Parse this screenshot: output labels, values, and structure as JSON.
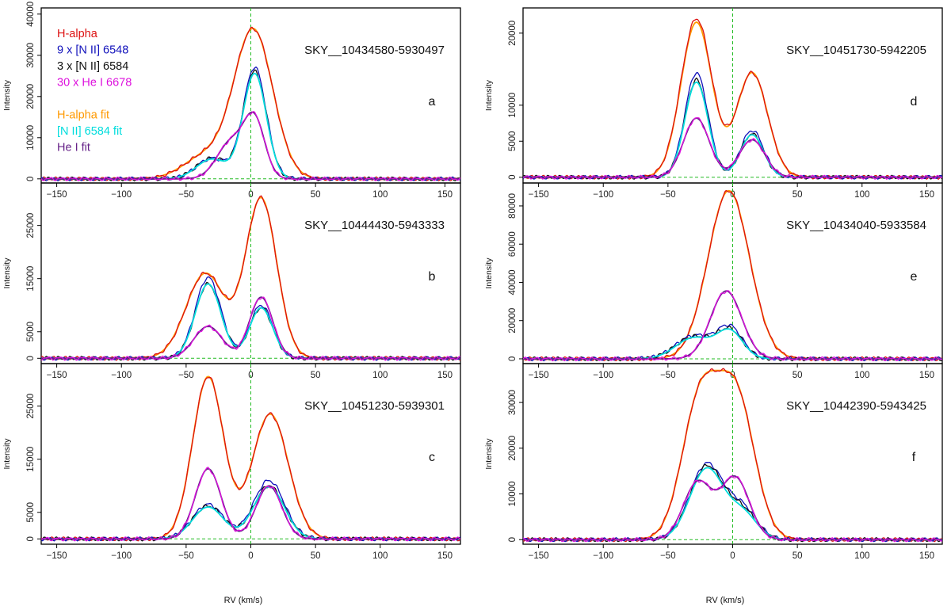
{
  "figure": {
    "xlabel": "RV (km/s)",
    "ylabel": "Intensity"
  },
  "legend": [
    {
      "label": "H-alpha",
      "color": "#dd1111"
    },
    {
      "label": "9 x [N II] 6548",
      "color": "#1111bb"
    },
    {
      "label": "3 x [N II] 6584",
      "color": "#111111"
    },
    {
      "label": "30 x He I 6678",
      "color": "#dd11dd"
    },
    {
      "label": "",
      "color": ""
    },
    {
      "label": "H-alpha fit",
      "color": "#ff9900"
    },
    {
      "label": "[N II] 6584 fit",
      "color": "#00dddd"
    },
    {
      "label": "He I fit",
      "color": "#662288"
    }
  ],
  "chart_data": [
    {
      "type": "line",
      "panel": "a",
      "title": "SKY__10434580-5930497",
      "xlabel": "RV (km/s)",
      "ylabel": "Intensity",
      "xlim": [
        -162,
        162
      ],
      "ylim": [
        -1000,
        41500
      ],
      "xticks": [
        -150,
        -100,
        -50,
        0,
        50,
        100,
        150
      ],
      "yticks": [
        0,
        10000,
        20000,
        30000,
        40000
      ],
      "vline_x": 0,
      "hline_y": 0,
      "series": [
        {
          "name": "H-alpha fit",
          "color": "#ff9900",
          "components": [
            [
              5500,
              -35,
              17
            ],
            [
              36000,
              2,
              15
            ]
          ]
        },
        {
          "name": "H-alpha",
          "color": "#dd1111",
          "components": [
            [
              5500,
              -35,
              17
            ],
            [
              36000,
              2,
              15
            ]
          ]
        },
        {
          "name": "9 x [N II] 6548",
          "color": "#1111bb",
          "components": [
            [
              5000,
              -30,
              12
            ],
            [
              27000,
              3,
              9
            ]
          ]
        },
        {
          "name": "3 x [N II] 6584",
          "color": "#111111",
          "components": [
            [
              5000,
              -30,
              12
            ],
            [
              26000,
              3,
              9
            ]
          ]
        },
        {
          "name": "[N II] 6584 fit",
          "color": "#00dddd",
          "components": [
            [
              4800,
              -30,
              12
            ],
            [
              25500,
              3,
              9
            ]
          ]
        },
        {
          "name": "He I fit",
          "color": "#662288",
          "components": [
            [
              9000,
              -15,
              11
            ],
            [
              13500,
              3,
              8
            ]
          ]
        },
        {
          "name": "30 x He I 6678",
          "color": "#dd11dd",
          "components": [
            [
              9000,
              -15,
              11
            ],
            [
              13500,
              3,
              8
            ]
          ]
        }
      ]
    },
    {
      "type": "line",
      "panel": "b",
      "title": "SKY__10444430-5943333",
      "xlabel": "RV (km/s)",
      "ylabel": "Intensity",
      "xlim": [
        -162,
        162
      ],
      "ylim": [
        -1000,
        33000
      ],
      "xticks": [
        -150,
        -100,
        -50,
        0,
        50,
        100,
        150
      ],
      "yticks": [
        0,
        5000,
        15000,
        25000
      ],
      "vline_x": 0,
      "hline_y": 0,
      "series": [
        {
          "name": "H-alpha fit",
          "color": "#ff9900",
          "components": [
            [
              16000,
              -35,
              15
            ],
            [
              30000,
              8,
              12
            ]
          ]
        },
        {
          "name": "H-alpha",
          "color": "#dd1111",
          "components": [
            [
              16000,
              -35,
              15
            ],
            [
              30000,
              8,
              12
            ]
          ]
        },
        {
          "name": "9 x [N II] 6548",
          "color": "#1111bb",
          "components": [
            [
              15200,
              -33,
              10
            ],
            [
              10000,
              8,
              9
            ]
          ]
        },
        {
          "name": "3 x [N II] 6584",
          "color": "#111111",
          "components": [
            [
              14000,
              -33,
              10
            ],
            [
              9500,
              8,
              9
            ]
          ]
        },
        {
          "name": "[N II] 6584 fit",
          "color": "#00dddd",
          "components": [
            [
              14000,
              -33,
              10
            ],
            [
              9500,
              8,
              9
            ]
          ]
        },
        {
          "name": "He I fit",
          "color": "#662288",
          "components": [
            [
              6000,
              -33,
              11
            ],
            [
              11500,
              8,
              9
            ]
          ]
        },
        {
          "name": "30 x He I 6678",
          "color": "#dd11dd",
          "components": [
            [
              6000,
              -33,
              11
            ],
            [
              11500,
              8,
              9
            ]
          ]
        }
      ]
    },
    {
      "type": "line",
      "panel": "c",
      "title": "SKY__10451230-5939301",
      "xlabel": "RV (km/s)",
      "ylabel": "Intensity",
      "xlim": [
        -162,
        162
      ],
      "ylim": [
        -1000,
        33000
      ],
      "xticks": [
        -150,
        -100,
        -50,
        0,
        50,
        100,
        150
      ],
      "yticks": [
        0,
        5000,
        15000,
        25000
      ],
      "vline_x": 0,
      "hline_y": 0,
      "series": [
        {
          "name": "H-alpha fit",
          "color": "#ff9900",
          "components": [
            [
              30500,
              -33,
              12
            ],
            [
              23500,
              15,
              14
            ]
          ]
        },
        {
          "name": "H-alpha",
          "color": "#dd1111",
          "components": [
            [
              30500,
              -33,
              12
            ],
            [
              23500,
              15,
              14
            ]
          ]
        },
        {
          "name": "9 x [N II] 6548",
          "color": "#1111bb",
          "components": [
            [
              6500,
              -33,
              12
            ],
            [
              11000,
              14,
              12
            ]
          ]
        },
        {
          "name": "3 x [N II] 6584",
          "color": "#111111",
          "components": [
            [
              6200,
              -33,
              12
            ],
            [
              10000,
              14,
              12
            ]
          ]
        },
        {
          "name": "[N II] 6584 fit",
          "color": "#00dddd",
          "components": [
            [
              6000,
              -33,
              12
            ],
            [
              9800,
              14,
              12
            ]
          ]
        },
        {
          "name": "He I fit",
          "color": "#662288",
          "components": [
            [
              13200,
              -33,
              10
            ],
            [
              10000,
              14,
              10
            ]
          ]
        },
        {
          "name": "30 x He I 6678",
          "color": "#dd11dd",
          "components": [
            [
              13200,
              -33,
              10
            ],
            [
              10000,
              14,
              10
            ]
          ]
        }
      ]
    },
    {
      "type": "line",
      "panel": "d",
      "title": "SKY__10451730-5942205",
      "xlabel": "RV (km/s)",
      "ylabel": "Intensity",
      "xlim": [
        -162,
        162
      ],
      "ylim": [
        -800,
        23500
      ],
      "xticks": [
        -150,
        -100,
        -50,
        0,
        50,
        100,
        150
      ],
      "yticks": [
        0,
        5000,
        10000,
        20000
      ],
      "vline_x": 0,
      "hline_y": 0,
      "series": [
        {
          "name": "H-alpha fit",
          "color": "#ff9900",
          "components": [
            [
              21500,
              -28,
              12
            ],
            [
              14500,
              15,
              12
            ]
          ]
        },
        {
          "name": "H-alpha",
          "color": "#dd1111",
          "components": [
            [
              22000,
              -28,
              12
            ],
            [
              14500,
              15,
              12
            ]
          ]
        },
        {
          "name": "9 x [N II] 6548",
          "color": "#1111bb",
          "components": [
            [
              14500,
              -28,
              9
            ],
            [
              6500,
              15,
              9
            ]
          ]
        },
        {
          "name": "3 x [N II] 6584",
          "color": "#111111",
          "components": [
            [
              13500,
              -28,
              9
            ],
            [
              6000,
              15,
              9
            ]
          ]
        },
        {
          "name": "[N II] 6584 fit",
          "color": "#00dddd",
          "components": [
            [
              13200,
              -28,
              9
            ],
            [
              5900,
              15,
              9
            ]
          ]
        },
        {
          "name": "He I fit",
          "color": "#662288",
          "components": [
            [
              8200,
              -28,
              10
            ],
            [
              5200,
              15,
              10
            ]
          ]
        },
        {
          "name": "30 x He I 6678",
          "color": "#dd11dd",
          "components": [
            [
              8200,
              -28,
              10
            ],
            [
              5200,
              15,
              10
            ]
          ]
        }
      ]
    },
    {
      "type": "line",
      "panel": "e",
      "title": "SKY__10434040-5933584",
      "xlabel": "RV (km/s)",
      "ylabel": "Intensity",
      "xlim": [
        -162,
        162
      ],
      "ylim": [
        -2500,
        92000
      ],
      "xticks": [
        -150,
        -100,
        -50,
        0,
        50,
        100,
        150
      ],
      "yticks": [
        0,
        20000,
        40000,
        60000,
        80000
      ],
      "vline_x": 0,
      "hline_y": 0,
      "series": [
        {
          "name": "H-alpha fit",
          "color": "#ff9900",
          "components": [
            [
              88000,
              -3,
              16
            ]
          ]
        },
        {
          "name": "H-alpha",
          "color": "#dd1111",
          "components": [
            [
              88000,
              -3,
              16
            ]
          ]
        },
        {
          "name": "9 x [N II] 6548",
          "color": "#1111bb",
          "components": [
            [
              12000,
              -30,
              14
            ],
            [
              16000,
              -2,
              10
            ]
          ]
        },
        {
          "name": "3 x [N II] 6584",
          "color": "#111111",
          "components": [
            [
              11500,
              -30,
              14
            ],
            [
              14500,
              -2,
              10
            ]
          ]
        },
        {
          "name": "[N II] 6584 fit",
          "color": "#00dddd",
          "components": [
            [
              11000,
              -30,
              14
            ],
            [
              14000,
              -2,
              10
            ]
          ]
        },
        {
          "name": "He I fit",
          "color": "#662288",
          "components": [
            [
              35500,
              -5,
              12
            ]
          ]
        },
        {
          "name": "30 x He I 6678",
          "color": "#dd11dd",
          "components": [
            [
              35500,
              -5,
              12
            ]
          ]
        }
      ]
    },
    {
      "type": "line",
      "panel": "f",
      "title": "SKY__10442390-5943425",
      "xlabel": "RV (km/s)",
      "ylabel": "Intensity",
      "xlim": [
        -162,
        162
      ],
      "ylim": [
        -1000,
        38500
      ],
      "xticks": [
        -150,
        -100,
        -50,
        0,
        50,
        100,
        150
      ],
      "yticks": [
        0,
        10000,
        20000,
        30000
      ],
      "vline_x": 0,
      "hline_y": 0,
      "series": [
        {
          "name": "H-alpha fit",
          "color": "#ff9900",
          "components": [
            [
              30500,
              -25,
              14
            ],
            [
              30500,
              3,
              14
            ]
          ]
        },
        {
          "name": "H-alpha",
          "color": "#dd1111",
          "components": [
            [
              30500,
              -25,
              14
            ],
            [
              30500,
              3,
              14
            ]
          ]
        },
        {
          "name": "9 x [N II] 6548",
          "color": "#1111bb",
          "components": [
            [
              16500,
              -20,
              13
            ],
            [
              6500,
              8,
              11
            ]
          ]
        },
        {
          "name": "3 x [N II] 6584",
          "color": "#111111",
          "components": [
            [
              16000,
              -20,
              13
            ],
            [
              6000,
              8,
              11
            ]
          ]
        },
        {
          "name": "[N II] 6584 fit",
          "color": "#00dddd",
          "components": [
            [
              15500,
              -20,
              13
            ],
            [
              5500,
              8,
              11
            ]
          ]
        },
        {
          "name": "He I fit",
          "color": "#662288",
          "components": [
            [
              12500,
              -27,
              11
            ],
            [
              13500,
              2,
              11
            ]
          ]
        },
        {
          "name": "30 x He I 6678",
          "color": "#dd11dd",
          "components": [
            [
              12500,
              -27,
              11
            ],
            [
              13500,
              2,
              11
            ]
          ]
        }
      ]
    }
  ]
}
